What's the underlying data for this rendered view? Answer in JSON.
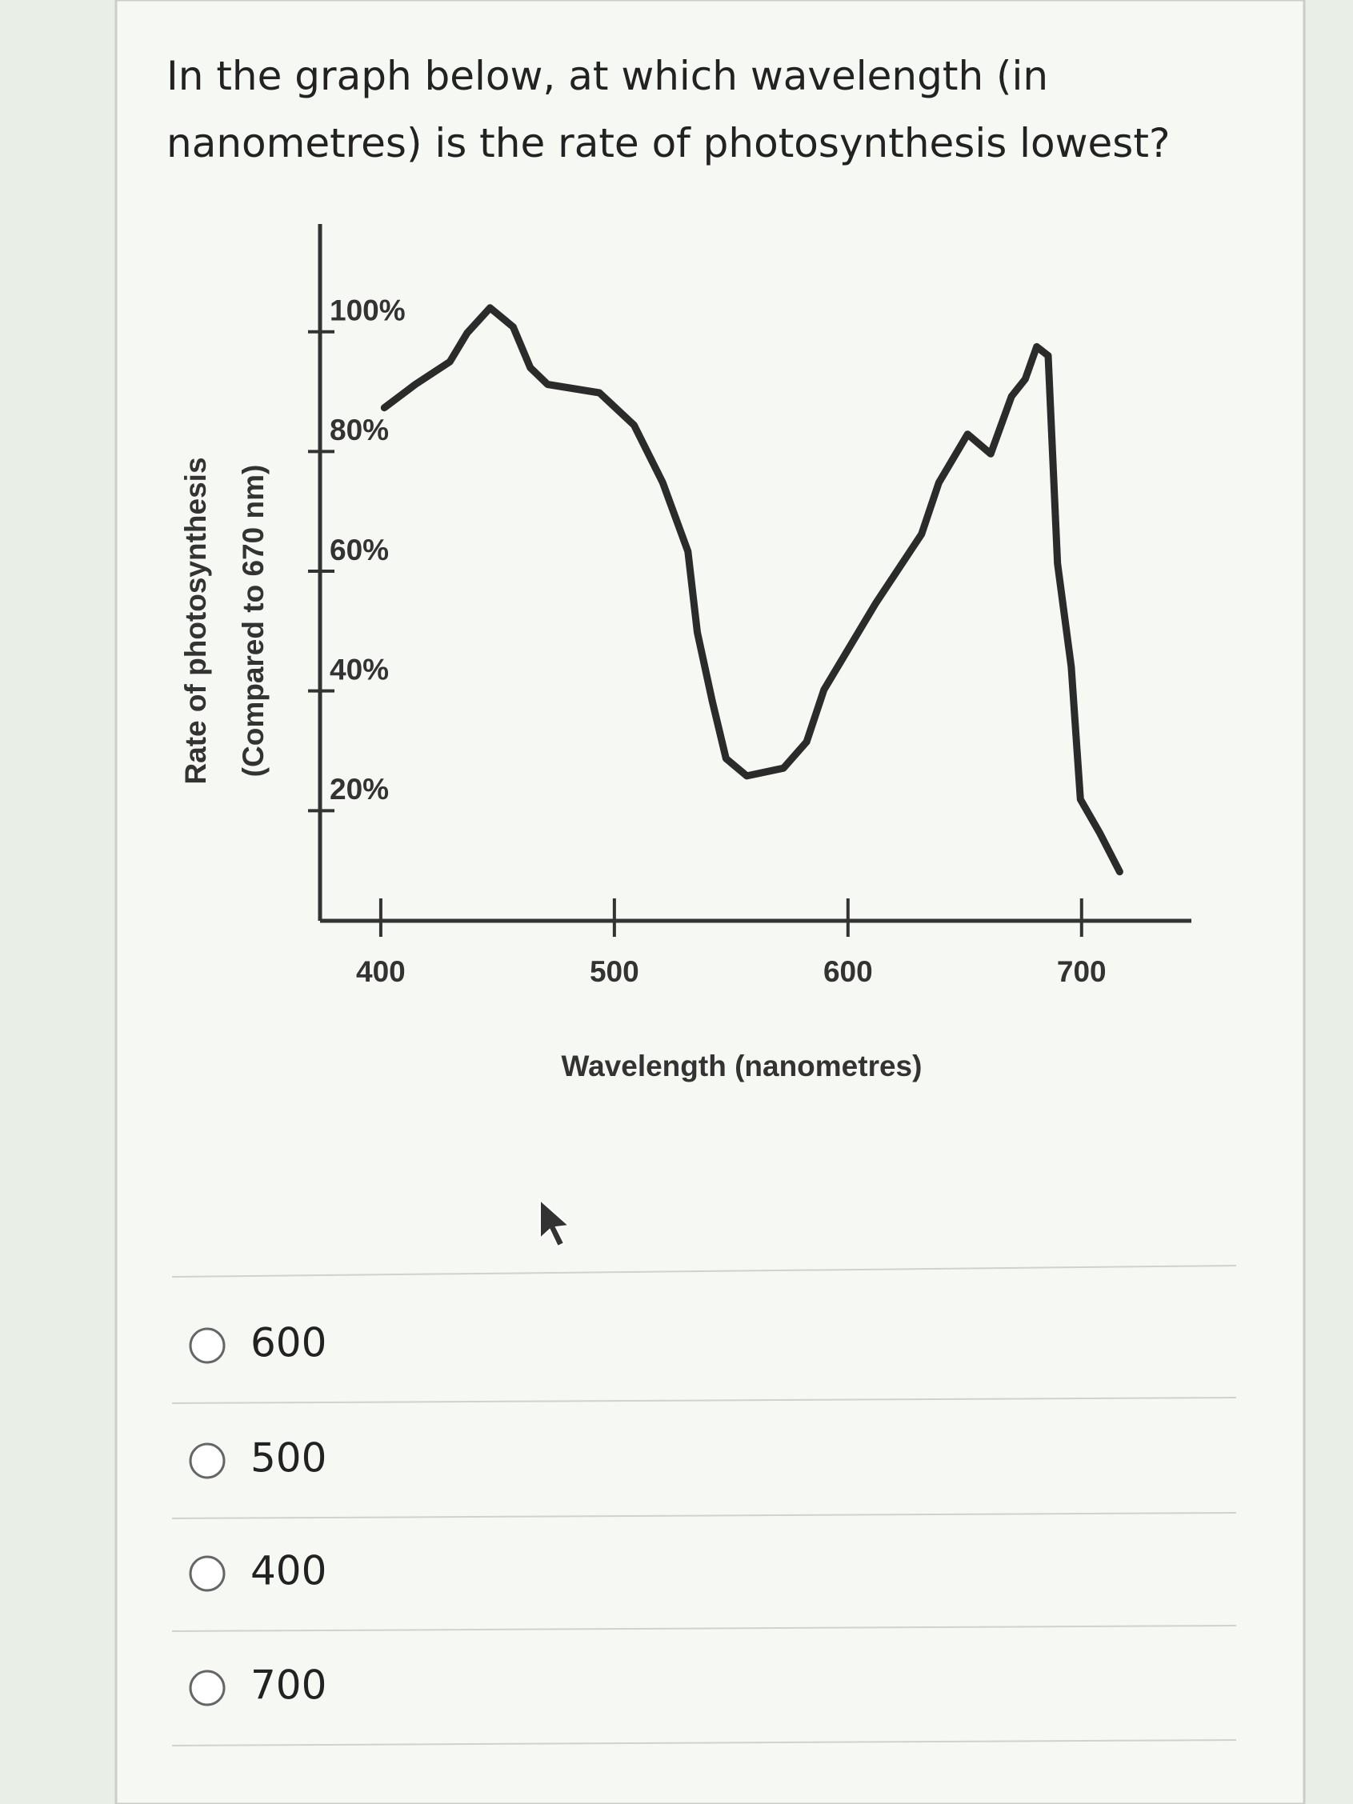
{
  "question": "In the graph below, at which wavelength (in nanometres) is the rate of photosynthesis lowest?",
  "chart_data": {
    "type": "line",
    "x_label": "Wavelength (nanometres)",
    "y_label": [
      "Rate of photosynthesis",
      "(Compared to 670 nm)"
    ],
    "x": [
      401.5,
      414.8,
      429.6,
      437,
      446.8,
      456.7,
      464,
      471.4,
      493.6,
      508.4,
      520.7,
      531.5,
      535.5,
      541.9,
      547.8,
      556.7,
      572.4,
      582.3,
      589.7,
      611.8,
      631.5,
      638.9,
      651.2,
      661.1,
      670,
      675.9,
      680.8,
      685.7,
      689.7,
      695.6,
      699.5,
      707.9,
      716.3
    ],
    "values": [
      87.3,
      91.2,
      95,
      99.8,
      104,
      100.8,
      94,
      91.2,
      89.8,
      84.4,
      74.8,
      63.3,
      49.8,
      38.3,
      28.7,
      25.8,
      27.1,
      31.5,
      40.2,
      54.6,
      66.2,
      74.8,
      82.9,
      79.6,
      89.2,
      92.1,
      97.5,
      96,
      61.3,
      44,
      21.9,
      16.2,
      9.8
    ],
    "color": "#2b2b2b",
    "xlim": [
      374,
      747
    ],
    "ylim": [
      0,
      118
    ],
    "xticks": [
      400,
      500,
      600,
      700
    ],
    "yticks": [
      {
        "value": 20,
        "label": "20%"
      },
      {
        "value": 40,
        "label": "40%"
      },
      {
        "value": 60,
        "label": "60%"
      },
      {
        "value": 80,
        "label": "80%"
      },
      {
        "value": 100,
        "label": "100%"
      }
    ],
    "grid": false
  },
  "options": [
    "600",
    "500",
    "400",
    "700"
  ]
}
